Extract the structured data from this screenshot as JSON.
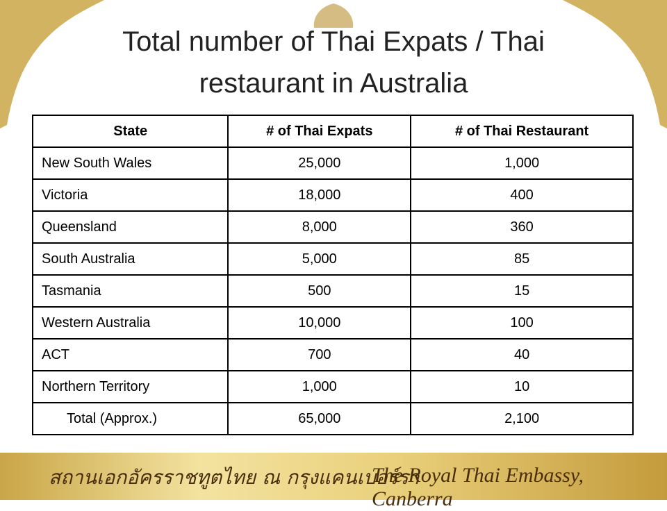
{
  "header": {
    "title": "Total number of Thai Expats / Thai restaurant in Australia"
  },
  "table": {
    "columns": [
      "State",
      "# of Thai Expats",
      "# of Thai Restaurant"
    ],
    "rows": [
      [
        "New South Wales",
        "25,000",
        "1,000"
      ],
      [
        "Victoria",
        "18,000",
        "400"
      ],
      [
        "Queensland",
        "8,000",
        "360"
      ],
      [
        "South Australia",
        "5,000",
        "85"
      ],
      [
        "Tasmania",
        "500",
        "15"
      ],
      [
        "Western Australia",
        "10,000",
        "100"
      ],
      [
        "ACT",
        "700",
        "40"
      ],
      [
        "Northern Territory",
        "1,000",
        "10"
      ],
      [
        "Total (Approx.)",
        "65,000",
        "2,100"
      ]
    ]
  },
  "footer": {
    "thai": "สถานเอกอัครราชทูตไทย ณ กรุงแคนเบอร์รา",
    "english": "The Royal Thai Embassy, Canberra"
  }
}
